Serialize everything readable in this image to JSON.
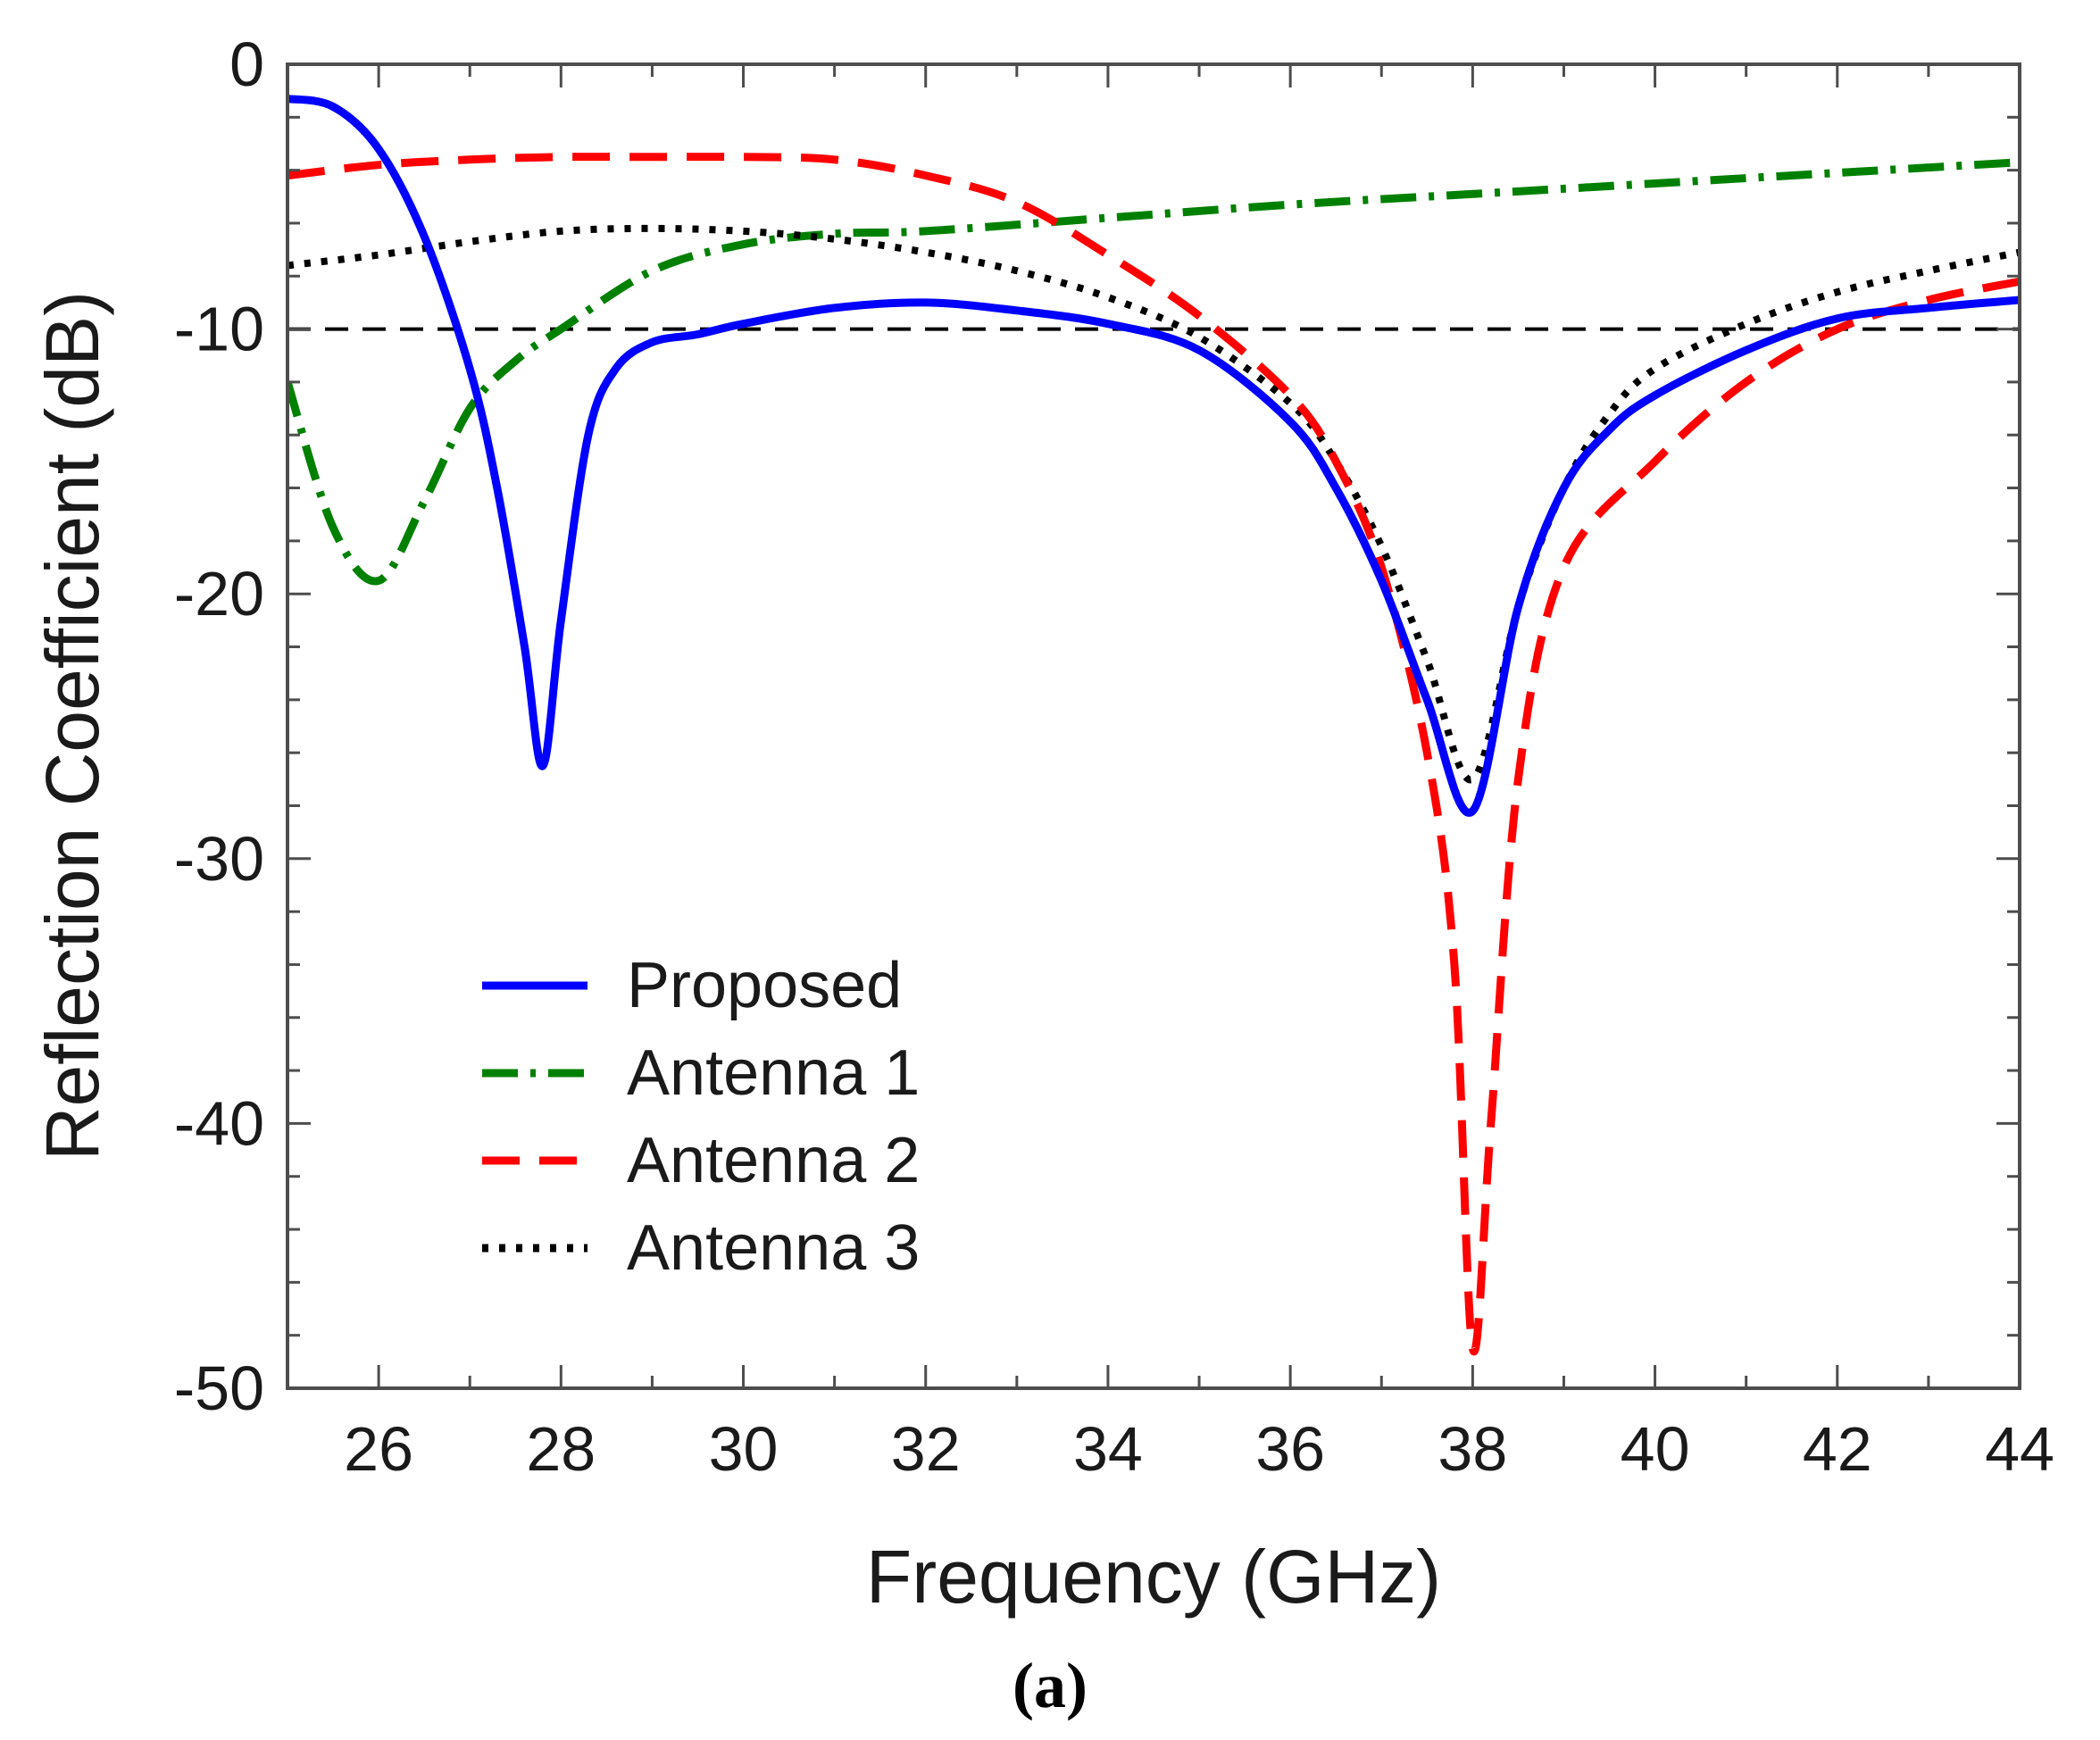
{
  "chart_data": {
    "type": "line",
    "xlabel": "Frequency (GHz)",
    "ylabel": "Reflection Coefficient (dB)",
    "xlim": [
      25,
      44
    ],
    "ylim": [
      -50,
      0
    ],
    "x_ticks": [
      26,
      28,
      30,
      32,
      34,
      36,
      38,
      40,
      42,
      44
    ],
    "y_ticks": [
      0,
      -10,
      -20,
      -30,
      -40,
      -50
    ],
    "grid": false,
    "legend_position": "bottom-left",
    "reference_line": {
      "y": -10,
      "style": "dashed",
      "color": "#000000"
    },
    "caption": "(a)",
    "series": [
      {
        "name": "Proposed",
        "color": "#0000ff",
        "style": "solid",
        "x": [
          25,
          25.5,
          26,
          26.5,
          27,
          27.3,
          27.6,
          27.8,
          28,
          28.3,
          28.6,
          29,
          29.5,
          30,
          31,
          32,
          33,
          34,
          35,
          36,
          36.5,
          37,
          37.5,
          38,
          38.5,
          39,
          39.5,
          40,
          41,
          42,
          43,
          44
        ],
        "y": [
          -1.3,
          -1.6,
          -3.2,
          -6.5,
          -11.5,
          -16,
          -22,
          -26.5,
          -21,
          -14,
          -11.5,
          -10.5,
          -10.2,
          -9.8,
          -9.2,
          -9.0,
          -9.3,
          -9.8,
          -10.8,
          -13.5,
          -16,
          -19.5,
          -24,
          -28.2,
          -20.5,
          -16,
          -13.8,
          -12.5,
          -10.8,
          -9.6,
          -9.2,
          -8.9
        ]
      },
      {
        "name": "Antenna 1",
        "color": "#008000",
        "style": "dash-dot",
        "x": [
          25,
          25.5,
          26,
          26.5,
          27,
          27.5,
          28,
          29,
          30,
          31,
          32,
          34,
          36,
          38,
          40,
          42,
          44
        ],
        "y": [
          -12,
          -17.5,
          -19.5,
          -16.5,
          -13,
          -11.2,
          -10,
          -7.8,
          -6.8,
          -6.4,
          -6.3,
          -5.8,
          -5.3,
          -4.9,
          -4.5,
          -4.1,
          -3.7
        ]
      },
      {
        "name": "Antenna 2",
        "color": "#ff0000",
        "style": "dashed",
        "x": [
          25,
          26,
          27,
          28,
          29,
          30,
          31,
          32,
          33,
          34,
          35,
          36,
          36.5,
          37,
          37.5,
          37.8,
          38,
          38.2,
          38.5,
          39,
          40,
          41,
          42,
          43,
          44
        ],
        "y": [
          -4.2,
          -3.8,
          -3.6,
          -3.5,
          -3.5,
          -3.5,
          -3.6,
          -4.2,
          -5.2,
          -7.2,
          -9.5,
          -12.5,
          -15,
          -19,
          -26,
          -34,
          -48.5,
          -40,
          -27,
          -19,
          -15,
          -12,
          -10,
          -8.9,
          -8.2
        ]
      },
      {
        "name": "Antenna 3",
        "color": "#000000",
        "style": "dotted",
        "x": [
          25,
          26,
          27,
          28,
          29,
          30,
          31,
          32,
          33,
          34,
          35,
          36,
          36.5,
          37,
          37.5,
          38,
          38.5,
          39,
          39.5,
          40,
          41,
          42,
          43,
          44
        ],
        "y": [
          -7.6,
          -7.2,
          -6.7,
          -6.3,
          -6.2,
          -6.3,
          -6.6,
          -7.1,
          -7.8,
          -8.8,
          -10.3,
          -12.8,
          -15,
          -18.2,
          -22.5,
          -27,
          -20.5,
          -16,
          -13.2,
          -11.5,
          -9.8,
          -8.6,
          -7.8,
          -7.1
        ]
      }
    ]
  }
}
